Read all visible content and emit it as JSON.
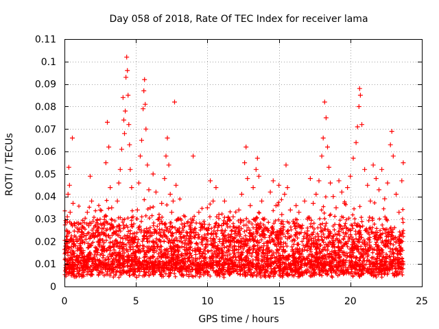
{
  "chart_data": {
    "type": "scatter",
    "title": "Day 058 of 2018, Rate Of TEC Index for receiver lama",
    "xlabel": "GPS time / hours",
    "ylabel": "ROTI / TECUs",
    "xlim": [
      0,
      25
    ],
    "ylim": [
      0,
      0.11
    ],
    "x_ticks": [
      0,
      5,
      10,
      15,
      20,
      25
    ],
    "x_tick_labels": [
      "0",
      "5",
      "10",
      "15",
      "20",
      "25"
    ],
    "y_ticks": [
      0,
      0.01,
      0.02,
      0.03,
      0.04,
      0.05,
      0.06,
      0.07,
      0.08,
      0.09,
      0.1,
      0.11
    ],
    "y_tick_labels": [
      "0",
      "0.01",
      "0.02",
      "0.03",
      "0.04",
      "0.05",
      "0.06",
      "0.07",
      "0.08",
      "0.09",
      "0.1",
      "0.11"
    ],
    "grid": true,
    "marker": "+",
    "series_color": "#ff0000",
    "series": [
      {
        "name": "ROTI",
        "points": [
          [
            0.05,
            0.012
          ],
          [
            0.1,
            0.018
          ],
          [
            0.15,
            0.025
          ],
          [
            0.2,
            0.031
          ],
          [
            0.25,
            0.041
          ],
          [
            0.3,
            0.053
          ],
          [
            0.35,
            0.045
          ],
          [
            0.4,
            0.033
          ],
          [
            0.45,
            0.021
          ],
          [
            0.5,
            0.014
          ],
          [
            0.55,
            0.066
          ],
          [
            0.6,
            0.037
          ],
          [
            0.7,
            0.028
          ],
          [
            0.8,
            0.022
          ],
          [
            0.9,
            0.017
          ],
          [
            1.0,
            0.013
          ],
          [
            1.1,
            0.019
          ],
          [
            1.2,
            0.024
          ],
          [
            1.3,
            0.016
          ],
          [
            1.4,
            0.011
          ],
          [
            1.5,
            0.021
          ],
          [
            1.6,
            0.033
          ],
          [
            1.7,
            0.027
          ],
          [
            1.8,
            0.049
          ],
          [
            1.9,
            0.038
          ],
          [
            2.0,
            0.029
          ],
          [
            2.1,
            0.022
          ],
          [
            2.2,
            0.016
          ],
          [
            2.3,
            0.012
          ],
          [
            2.4,
            0.026
          ],
          [
            2.5,
            0.034
          ],
          [
            2.6,
            0.024
          ],
          [
            2.7,
            0.018
          ],
          [
            2.8,
            0.031
          ],
          [
            2.9,
            0.055
          ],
          [
            3.0,
            0.073
          ],
          [
            3.1,
            0.062
          ],
          [
            3.2,
            0.044
          ],
          [
            3.3,
            0.035
          ],
          [
            3.4,
            0.026
          ],
          [
            3.5,
            0.019
          ],
          [
            3.6,
            0.014
          ],
          [
            3.7,
            0.038
          ],
          [
            3.8,
            0.046
          ],
          [
            3.9,
            0.052
          ],
          [
            4.0,
            0.061
          ],
          [
            4.1,
            0.084
          ],
          [
            4.15,
            0.074
          ],
          [
            4.2,
            0.068
          ],
          [
            4.25,
            0.078
          ],
          [
            4.3,
            0.093
          ],
          [
            4.35,
            0.102
          ],
          [
            4.4,
            0.096
          ],
          [
            4.45,
            0.085
          ],
          [
            4.5,
            0.072
          ],
          [
            4.55,
            0.063
          ],
          [
            4.6,
            0.052
          ],
          [
            4.7,
            0.044
          ],
          [
            4.8,
            0.031
          ],
          [
            4.9,
            0.021
          ],
          [
            5.0,
            0.015
          ],
          [
            5.1,
            0.034
          ],
          [
            5.2,
            0.046
          ],
          [
            5.3,
            0.058
          ],
          [
            5.4,
            0.065
          ],
          [
            5.5,
            0.079
          ],
          [
            5.55,
            0.087
          ],
          [
            5.6,
            0.092
          ],
          [
            5.65,
            0.081
          ],
          [
            5.7,
            0.07
          ],
          [
            5.8,
            0.054
          ],
          [
            5.9,
            0.043
          ],
          [
            6.0,
            0.035
          ],
          [
            6.2,
            0.05
          ],
          [
            6.4,
            0.042
          ],
          [
            6.6,
            0.03
          ],
          [
            6.8,
            0.037
          ],
          [
            7.0,
            0.048
          ],
          [
            7.1,
            0.058
          ],
          [
            7.2,
            0.066
          ],
          [
            7.3,
            0.054
          ],
          [
            7.4,
            0.041
          ],
          [
            7.5,
            0.033
          ],
          [
            7.6,
            0.038
          ],
          [
            7.7,
            0.082
          ],
          [
            7.8,
            0.045
          ],
          [
            8.0,
            0.03
          ],
          [
            8.2,
            0.024
          ],
          [
            8.4,
            0.022
          ],
          [
            8.6,
            0.019
          ],
          [
            8.8,
            0.027
          ],
          [
            9.0,
            0.058
          ],
          [
            9.2,
            0.024
          ],
          [
            9.4,
            0.033
          ],
          [
            9.6,
            0.021
          ],
          [
            9.8,
            0.026
          ],
          [
            10.0,
            0.035
          ],
          [
            10.2,
            0.047
          ],
          [
            10.4,
            0.038
          ],
          [
            10.6,
            0.044
          ],
          [
            10.8,
            0.032
          ],
          [
            11.0,
            0.027
          ],
          [
            11.2,
            0.038
          ],
          [
            11.4,
            0.029
          ],
          [
            11.6,
            0.022
          ],
          [
            11.8,
            0.031
          ],
          [
            12.0,
            0.026
          ],
          [
            12.2,
            0.034
          ],
          [
            12.4,
            0.041
          ],
          [
            12.6,
            0.055
          ],
          [
            12.7,
            0.062
          ],
          [
            12.8,
            0.048
          ],
          [
            13.0,
            0.036
          ],
          [
            13.2,
            0.044
          ],
          [
            13.4,
            0.052
          ],
          [
            13.5,
            0.057
          ],
          [
            13.6,
            0.049
          ],
          [
            13.8,
            0.038
          ],
          [
            14.0,
            0.03
          ],
          [
            14.2,
            0.025
          ],
          [
            14.4,
            0.042
          ],
          [
            14.6,
            0.047
          ],
          [
            14.8,
            0.036
          ],
          [
            15.0,
            0.045
          ],
          [
            15.2,
            0.032
          ],
          [
            15.4,
            0.041
          ],
          [
            15.5,
            0.054
          ],
          [
            15.6,
            0.044
          ],
          [
            15.8,
            0.034
          ],
          [
            16.0,
            0.029
          ],
          [
            16.2,
            0.036
          ],
          [
            16.4,
            0.033
          ],
          [
            16.6,
            0.026
          ],
          [
            16.8,
            0.038
          ],
          [
            17.0,
            0.03
          ],
          [
            17.2,
            0.048
          ],
          [
            17.4,
            0.037
          ],
          [
            17.6,
            0.041
          ],
          [
            17.8,
            0.047
          ],
          [
            18.0,
            0.058
          ],
          [
            18.1,
            0.066
          ],
          [
            18.2,
            0.082
          ],
          [
            18.3,
            0.075
          ],
          [
            18.4,
            0.062
          ],
          [
            18.5,
            0.053
          ],
          [
            18.6,
            0.046
          ],
          [
            18.8,
            0.04
          ],
          [
            19.0,
            0.035
          ],
          [
            19.2,
            0.047
          ],
          [
            19.4,
            0.042
          ],
          [
            19.6,
            0.037
          ],
          [
            19.8,
            0.044
          ],
          [
            20.0,
            0.049
          ],
          [
            20.2,
            0.057
          ],
          [
            20.4,
            0.064
          ],
          [
            20.5,
            0.071
          ],
          [
            20.6,
            0.08
          ],
          [
            20.65,
            0.088
          ],
          [
            20.7,
            0.085
          ],
          [
            20.8,
            0.072
          ],
          [
            21.0,
            0.052
          ],
          [
            21.2,
            0.045
          ],
          [
            21.4,
            0.038
          ],
          [
            21.6,
            0.054
          ],
          [
            21.8,
            0.048
          ],
          [
            22.0,
            0.043
          ],
          [
            22.2,
            0.052
          ],
          [
            22.4,
            0.039
          ],
          [
            22.6,
            0.046
          ],
          [
            22.8,
            0.063
          ],
          [
            22.9,
            0.069
          ],
          [
            23.0,
            0.058
          ],
          [
            23.2,
            0.041
          ],
          [
            23.4,
            0.033
          ],
          [
            23.6,
            0.047
          ],
          [
            23.7,
            0.055
          ]
        ]
      }
    ]
  }
}
